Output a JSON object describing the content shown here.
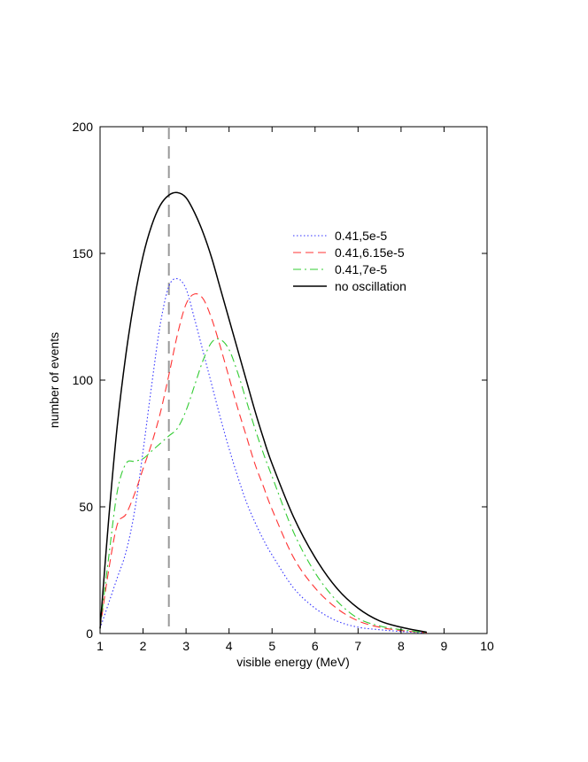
{
  "chart_data": {
    "type": "line",
    "title": "",
    "xlabel": "visible energy (MeV)",
    "ylabel": "number of events",
    "xlim": [
      1,
      10
    ],
    "ylim": [
      0,
      200
    ],
    "xticks": [
      1,
      2,
      3,
      4,
      5,
      6,
      7,
      8,
      9,
      10
    ],
    "yticks": [
      0,
      50,
      100,
      150,
      200
    ],
    "grid": false,
    "legend_position": "top-right",
    "reference_line": {
      "x": 2.6,
      "style": "dashed",
      "color": "#999999"
    },
    "series": [
      {
        "name": "0.41,5e-5",
        "color": "#3333ff",
        "dash": "1.5 2.5",
        "x": [
          1.0,
          1.2,
          1.4,
          1.6,
          1.8,
          2.0,
          2.2,
          2.4,
          2.6,
          2.8,
          3.0,
          3.2,
          3.4,
          3.6,
          3.8,
          4.0,
          4.2,
          4.4,
          4.6,
          4.8,
          5.0,
          5.5,
          6.0,
          6.5,
          7.0,
          7.5,
          8.0,
          8.6
        ],
        "y": [
          2,
          12,
          22,
          32,
          48,
          72,
          98,
          122,
          137,
          140,
          136,
          124,
          111,
          98,
          85,
          73,
          62,
          52,
          44,
          37,
          31,
          18,
          10,
          5,
          2.5,
          1.5,
          0.8,
          0.2
        ]
      },
      {
        "name": "0.41,6.15e-5",
        "color": "#ff3333",
        "dash": "9 5",
        "x": [
          1.0,
          1.2,
          1.4,
          1.6,
          1.8,
          2.0,
          2.2,
          2.4,
          2.6,
          2.8,
          3.0,
          3.2,
          3.4,
          3.6,
          3.8,
          4.0,
          4.2,
          4.4,
          4.6,
          4.8,
          5.0,
          5.5,
          6.0,
          6.5,
          7.0,
          7.5,
          8.0,
          8.6
        ],
        "y": [
          2,
          25,
          43,
          47,
          55,
          65,
          75,
          87,
          102,
          118,
          130,
          134,
          132,
          124,
          113,
          101,
          89,
          78,
          67,
          58,
          49,
          30,
          18,
          10,
          5,
          2.5,
          1.2,
          0.3
        ]
      },
      {
        "name": "0.41,7e-5",
        "color": "#33cc33",
        "dash": "9 4 2 4",
        "x": [
          1.0,
          1.2,
          1.4,
          1.6,
          1.8,
          2.0,
          2.2,
          2.4,
          2.6,
          2.8,
          3.0,
          3.2,
          3.4,
          3.6,
          3.8,
          4.0,
          4.2,
          4.4,
          4.6,
          4.8,
          5.0,
          5.5,
          6.0,
          6.5,
          7.0,
          7.5,
          8.0,
          8.6
        ],
        "y": [
          2,
          30,
          56,
          67,
          68,
          69,
          72,
          75,
          78,
          81,
          88,
          98,
          108,
          115,
          116,
          112,
          103,
          92,
          81,
          71,
          62,
          40,
          24,
          13,
          6,
          3,
          1.5,
          0.3
        ]
      },
      {
        "name": "no oscillation",
        "color": "#000000",
        "dash": "",
        "x": [
          1.0,
          1.2,
          1.4,
          1.6,
          1.8,
          2.0,
          2.2,
          2.4,
          2.6,
          2.8,
          3.0,
          3.2,
          3.4,
          3.6,
          3.8,
          4.0,
          4.2,
          4.4,
          4.6,
          4.8,
          5.0,
          5.5,
          6.0,
          6.5,
          7.0,
          7.5,
          8.0,
          8.6
        ],
        "y": [
          2,
          45,
          82,
          110,
          132,
          149,
          161,
          169,
          173,
          174,
          172,
          166,
          158,
          148,
          136,
          124,
          112,
          100,
          88,
          77,
          67,
          46,
          30,
          18,
          10,
          5,
          2.5,
          0.5
        ]
      }
    ]
  }
}
